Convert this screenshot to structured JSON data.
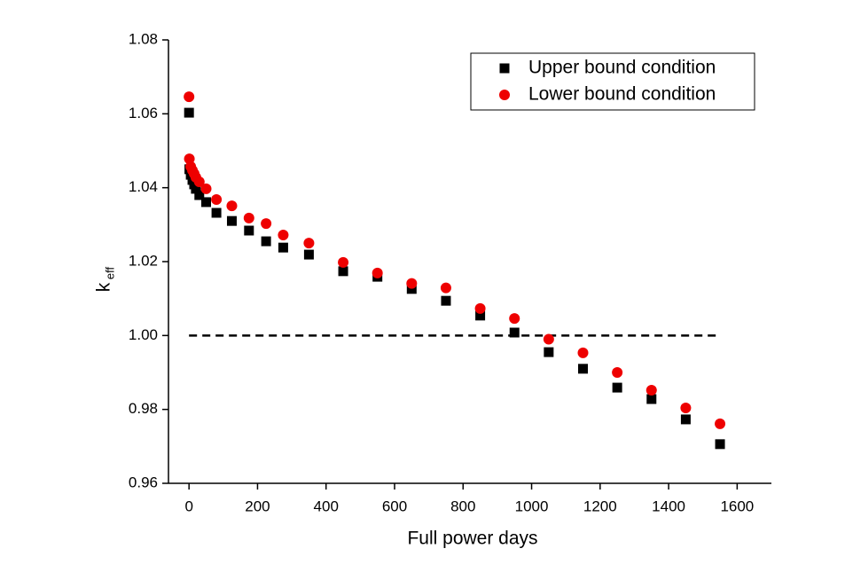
{
  "chart_data": {
    "type": "scatter",
    "xlabel": "Full power days",
    "ylabel": "k",
    "ylabel_sub": "eff",
    "xlim": [
      -60,
      1700
    ],
    "xticks": [
      0,
      200,
      400,
      600,
      800,
      1000,
      1200,
      1400,
      1600
    ],
    "ylim": [
      0.96,
      1.08
    ],
    "yticks": [
      0.96,
      0.98,
      {
        "value": 1,
        "label": "1.00"
      },
      1.02,
      1.04,
      1.06,
      1.08
    ],
    "legend": "top-right",
    "reference_line": {
      "y": 1,
      "x": [
        0,
        1550
      ],
      "color": "#000000"
    },
    "series": [
      {
        "name": "Upper bound condition",
        "color": "#000000",
        "marker": "square",
        "x": [
          0,
          1,
          5,
          10,
          15,
          20,
          30,
          50,
          80,
          125,
          175,
          225,
          275,
          350,
          450,
          550,
          650,
          750,
          850,
          950,
          1050,
          1150,
          1250,
          1350,
          1450,
          1550
        ],
        "values": [
          1.0603,
          1.045,
          1.0435,
          1.0421,
          1.0409,
          1.0397,
          1.038,
          1.0361,
          1.0332,
          1.031,
          1.0284,
          1.0255,
          1.0238,
          1.0219,
          1.0174,
          1.0159,
          1.0126,
          1.0094,
          1.0054,
          1.0008,
          0.9955,
          0.991,
          0.9859,
          0.9828,
          0.9773,
          0.9706
        ]
      },
      {
        "name": "Lower bound condition",
        "color": "#ee0000",
        "marker": "circle",
        "x": [
          0,
          1,
          5,
          10,
          15,
          20,
          30,
          50,
          80,
          125,
          175,
          225,
          275,
          350,
          450,
          550,
          650,
          750,
          850,
          950,
          1050,
          1150,
          1250,
          1350,
          1450,
          1550
        ],
        "values": [
          1.0646,
          1.0478,
          1.0457,
          1.0447,
          1.0438,
          1.0428,
          1.0416,
          1.0397,
          1.0368,
          1.0351,
          1.0318,
          1.0303,
          1.0272,
          1.025,
          1.0198,
          1.0169,
          1.0141,
          1.0129,
          1.0073,
          1.0046,
          0.999,
          0.9953,
          0.99,
          0.9852,
          0.9804,
          0.9761
        ]
      }
    ]
  }
}
